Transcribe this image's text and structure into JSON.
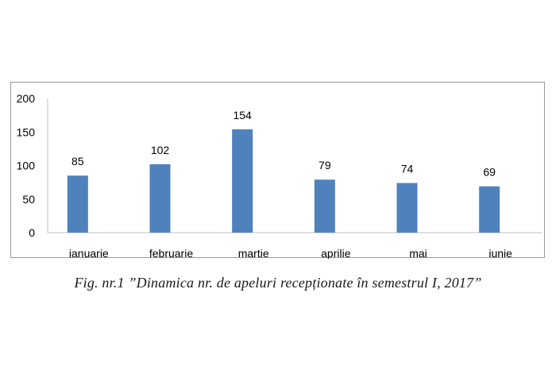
{
  "chart_data": {
    "type": "bar",
    "categories": [
      "ianuarie",
      "februarie",
      "martie",
      "aprilie",
      "mai",
      "iunie"
    ],
    "values": [
      85,
      102,
      154,
      79,
      74,
      69
    ],
    "ylim": [
      0,
      200
    ],
    "yticks": [
      0,
      50,
      100,
      150,
      200
    ],
    "grid": false,
    "legend": "none",
    "bar_color": "#4F81BD",
    "data_labels": true
  },
  "caption": "Fig. nr.1 ”Dinamica nr. de apeluri recepționate în semestrul I, 2017”"
}
